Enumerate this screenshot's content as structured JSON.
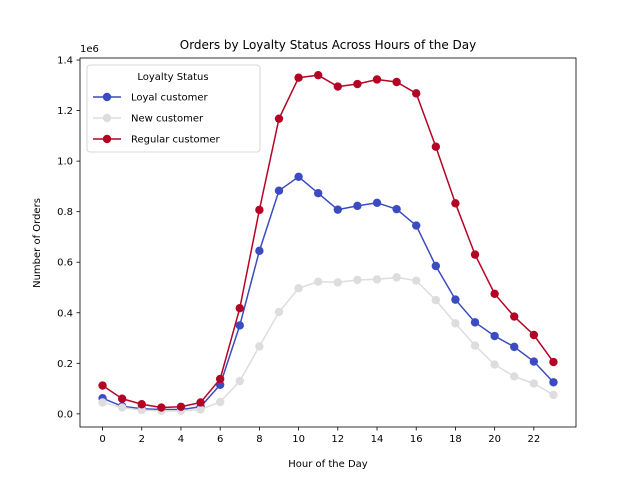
{
  "chart_data": {
    "type": "line",
    "title": "Orders by Loyalty Status Across Hours of the Day",
    "xlabel": "Hour of the Day",
    "ylabel": "Number of Orders",
    "y_offset_label": "1e6",
    "xlim": [
      -1.15,
      24.15
    ],
    "ylim": [
      -52000,
      1408000
    ],
    "x_ticks": [
      0,
      2,
      4,
      6,
      8,
      10,
      12,
      14,
      16,
      18,
      20,
      22
    ],
    "x_tick_labels": [
      "0",
      "2",
      "4",
      "6",
      "8",
      "10",
      "12",
      "14",
      "16",
      "18",
      "20",
      "22"
    ],
    "y_ticks": [
      0,
      200000,
      400000,
      600000,
      800000,
      1000000,
      1200000,
      1400000
    ],
    "y_tick_labels": [
      "0.0",
      "0.2",
      "0.4",
      "0.6",
      "0.8",
      "1.0",
      "1.2",
      "1.4"
    ],
    "grid": false,
    "legend": {
      "title": "Loyalty Status",
      "placement": "upper-left"
    },
    "x": [
      0,
      1,
      2,
      3,
      4,
      5,
      6,
      7,
      8,
      9,
      10,
      11,
      12,
      13,
      14,
      15,
      16,
      17,
      18,
      19,
      20,
      21,
      22,
      23
    ],
    "series": [
      {
        "name": "Loyal customer",
        "color": "#3b4cc0",
        "values": [
          62000,
          30000,
          20000,
          17000,
          17000,
          28000,
          115000,
          350000,
          645000,
          883000,
          938000,
          873000,
          808000,
          823000,
          835000,
          810000,
          745000,
          585000,
          452000,
          362000,
          308000,
          265000,
          207000,
          125000
        ]
      },
      {
        "name": "New customer",
        "color": "#dddddd",
        "values": [
          45000,
          25000,
          15000,
          12000,
          12000,
          17000,
          47000,
          130000,
          267000,
          403000,
          497000,
          523000,
          520000,
          530000,
          532000,
          540000,
          527000,
          450000,
          358000,
          270000,
          195000,
          148000,
          120000,
          75000
        ]
      },
      {
        "name": "Regular customer",
        "color": "#b40426",
        "values": [
          112000,
          60000,
          38000,
          25000,
          28000,
          45000,
          138000,
          418000,
          807000,
          1168000,
          1330000,
          1340000,
          1295000,
          1305000,
          1323000,
          1313000,
          1268000,
          1057000,
          833000,
          630000,
          475000,
          385000,
          312000,
          205000
        ]
      }
    ]
  }
}
